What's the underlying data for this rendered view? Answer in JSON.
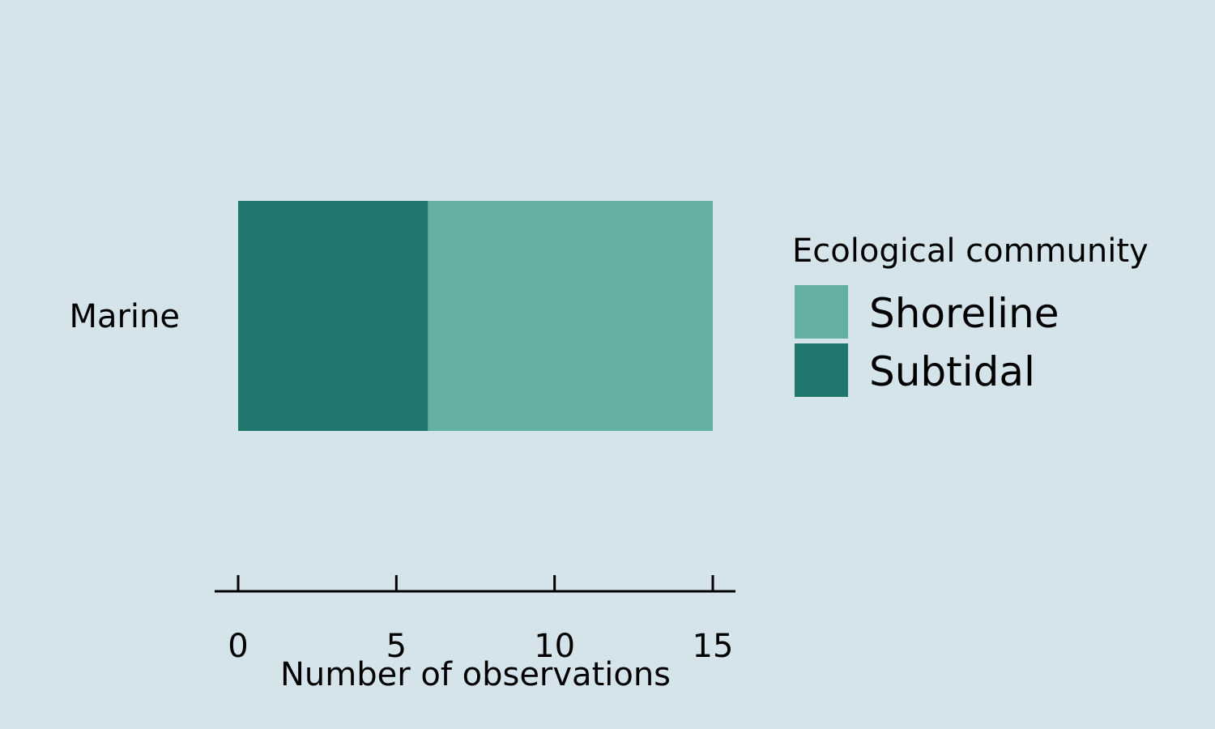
{
  "chart_data": {
    "type": "bar",
    "orientation": "horizontal",
    "stacked": true,
    "categories": [
      "Marine"
    ],
    "series": [
      {
        "name": "Subtidal",
        "values": [
          6
        ]
      },
      {
        "name": "Shoreline",
        "values": [
          9
        ]
      }
    ],
    "title": "",
    "xlabel": "Number of observations",
    "ylabel": "",
    "xlim": [
      0,
      15
    ],
    "xticks": [
      "0",
      "5",
      "10",
      "15"
    ],
    "grid": false,
    "legend": {
      "title": "Ecological community",
      "placement": "right",
      "entries": [
        "Shoreline",
        "Subtidal"
      ]
    }
  },
  "colors": {
    "background": "#d5e4eb",
    "Shoreline": "#63afa4",
    "Subtidal": "#20776e",
    "axis": "#000000"
  }
}
